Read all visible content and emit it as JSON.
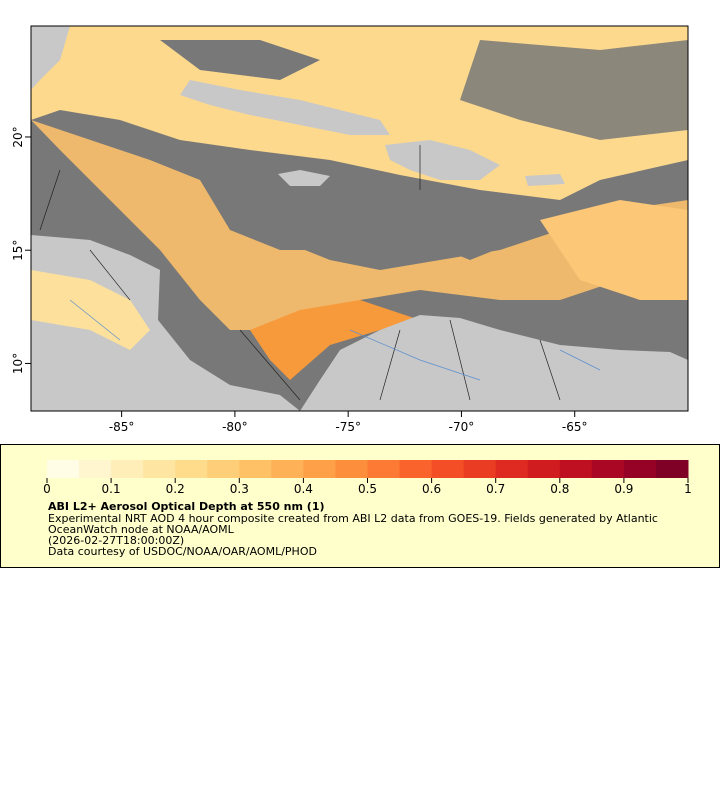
{
  "chart_data": {
    "type": "map",
    "xlim": [
      -89,
      -60
    ],
    "ylim": [
      7.9,
      24.9
    ],
    "xticks": [
      {
        "value": -85,
        "label": "-85°"
      },
      {
        "value": -80,
        "label": "-80°"
      },
      {
        "value": -75,
        "label": "-75°"
      },
      {
        "value": -70,
        "label": "-70°"
      },
      {
        "value": -65,
        "label": "-65°"
      }
    ],
    "yticks": [
      {
        "value": 10,
        "label": "10°"
      },
      {
        "value": 15,
        "label": "15°"
      },
      {
        "value": 20,
        "label": "20°"
      }
    ],
    "colorbar": {
      "lim": [
        0,
        1
      ],
      "ticks": [
        0,
        0.1,
        0.2,
        0.3,
        0.4,
        0.5,
        0.6,
        0.7,
        0.8,
        0.9,
        1
      ],
      "colors": [
        "#fffde6",
        "#fff6d0",
        "#ffeeb8",
        "#fee5a2",
        "#fedc8c",
        "#fecf78",
        "#fec166",
        "#feb156",
        "#fea048",
        "#fd8e3c",
        "#fc7a34",
        "#fa642c",
        "#f44e27",
        "#ea3b23",
        "#de2a20",
        "#d01b1f",
        "#be1020",
        "#aa0724",
        "#950226",
        "#7f0126"
      ]
    },
    "title": "ABI L2+ Aerosol Optical Depth at 550 nm (1)",
    "notes": [
      "Experimental NRT AOD 4 hour composite created from ABI L2 data from GOES-19. Fields generated by Atlantic",
      "OceanWatch node at NOAA/AOML",
      "(2026-02-27T18:00:00Z)",
      "Data courtesy of USDOC/NOAA/OAR/AOML/PHOD"
    ]
  }
}
